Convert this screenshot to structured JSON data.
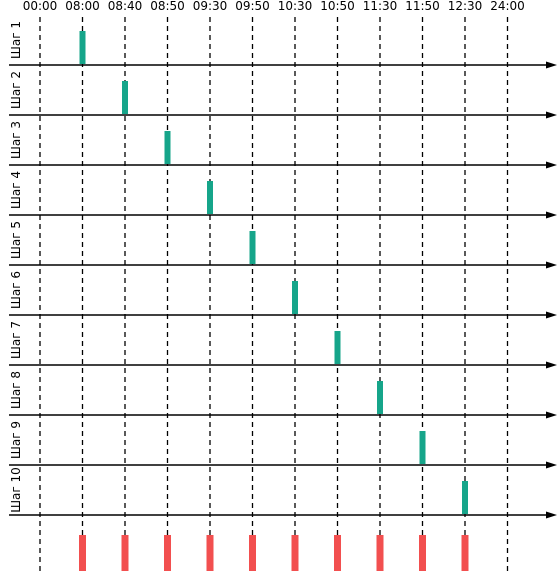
{
  "time_labels": [
    "00:00",
    "08:00",
    "08:40",
    "08:50",
    "09:30",
    "09:50",
    "10:30",
    "10:50",
    "11:30",
    "11:50",
    "12:30",
    "24:00"
  ],
  "steps": [
    {
      "label": "Шаг 1",
      "time": "08:00"
    },
    {
      "label": "Шаг 2",
      "time": "08:40"
    },
    {
      "label": "Шаг 3",
      "time": "08:50"
    },
    {
      "label": "Шаг 4",
      "time": "09:30"
    },
    {
      "label": "Шаг 5",
      "time": "09:50"
    },
    {
      "label": "Шаг 6",
      "time": "10:30"
    },
    {
      "label": "Шаг 7",
      "time": "10:50"
    },
    {
      "label": "Шаг 8",
      "time": "11:30"
    },
    {
      "label": "Шаг 9",
      "time": "11:50"
    },
    {
      "label": "Шаг 10",
      "time": "12:30"
    }
  ],
  "summary_marks": [
    "08:00",
    "08:40",
    "08:50",
    "09:30",
    "09:50",
    "10:30",
    "10:50",
    "11:30",
    "11:50",
    "12:30"
  ],
  "colors": {
    "step_marker": "#16a58a",
    "summary_marker": "#f24f4f",
    "line": "#000000"
  }
}
